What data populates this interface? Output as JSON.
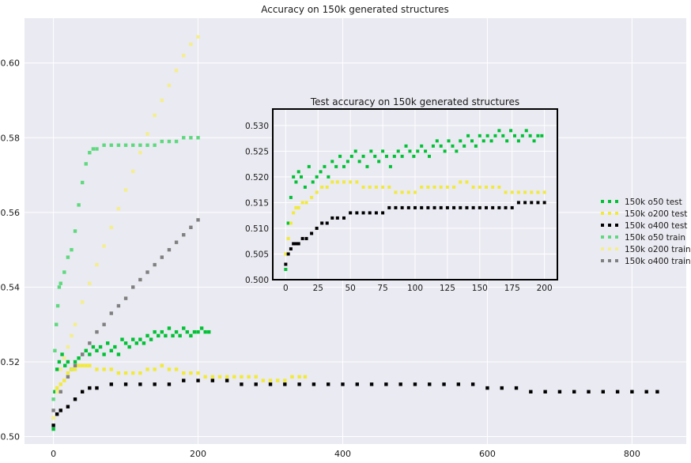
{
  "chart_data": [
    {
      "type": "scatter",
      "title": "Accuracy on 150k generated structures",
      "xlabel": "",
      "ylabel": "",
      "xlim": [
        -40,
        875
      ],
      "ylim": [
        0.498,
        0.612
      ],
      "xticks": [
        0,
        200,
        400,
        600,
        800
      ],
      "yticks": [
        0.5,
        0.52,
        0.54,
        0.56,
        0.58,
        0.6
      ],
      "grid": true,
      "legend_position": "right",
      "series": [
        {
          "name": "150k o50 test",
          "color": "#00c234",
          "x": [
            0,
            2,
            5,
            8,
            12,
            16,
            20,
            25,
            30,
            35,
            40,
            45,
            50,
            55,
            60,
            65,
            70,
            75,
            80,
            85,
            90,
            95,
            100,
            105,
            110,
            115,
            120,
            125,
            130,
            135,
            140,
            145,
            150,
            155,
            160,
            165,
            170,
            175,
            180,
            185,
            190,
            195,
            200,
            205,
            210,
            215
          ],
          "y": [
            0.502,
            0.512,
            0.518,
            0.52,
            0.522,
            0.519,
            0.52,
            0.518,
            0.52,
            0.521,
            0.522,
            0.523,
            0.522,
            0.524,
            0.523,
            0.524,
            0.522,
            0.525,
            0.523,
            0.524,
            0.522,
            0.526,
            0.525,
            0.524,
            0.526,
            0.525,
            0.526,
            0.525,
            0.527,
            0.526,
            0.528,
            0.527,
            0.528,
            0.527,
            0.529,
            0.527,
            0.528,
            0.527,
            0.529,
            0.528,
            0.527,
            0.528,
            0.528,
            0.529,
            0.528,
            0.528
          ]
        },
        {
          "name": "150k o200 test",
          "color": "#f2ea3a",
          "x": [
            0,
            5,
            10,
            15,
            20,
            25,
            30,
            35,
            40,
            45,
            50,
            60,
            70,
            80,
            90,
            100,
            110,
            120,
            130,
            140,
            150,
            160,
            170,
            180,
            190,
            200,
            210,
            220,
            230,
            240,
            250,
            260,
            270,
            280,
            290,
            300,
            310,
            320,
            330,
            340,
            348
          ],
          "y": [
            0.505,
            0.513,
            0.514,
            0.515,
            0.517,
            0.518,
            0.518,
            0.519,
            0.519,
            0.519,
            0.519,
            0.518,
            0.518,
            0.518,
            0.517,
            0.517,
            0.517,
            0.517,
            0.518,
            0.518,
            0.519,
            0.518,
            0.518,
            0.517,
            0.517,
            0.517,
            0.516,
            0.516,
            0.516,
            0.516,
            0.516,
            0.516,
            0.516,
            0.516,
            0.515,
            0.515,
            0.515,
            0.515,
            0.516,
            0.516,
            0.516
          ]
        },
        {
          "name": "150k o400 test",
          "color": "#000000",
          "x": [
            0,
            5,
            10,
            20,
            30,
            40,
            50,
            60,
            80,
            100,
            120,
            140,
            160,
            180,
            200,
            220,
            240,
            260,
            280,
            300,
            320,
            340,
            360,
            380,
            400,
            420,
            440,
            460,
            480,
            500,
            520,
            540,
            560,
            580,
            600,
            620,
            640,
            660,
            680,
            700,
            720,
            740,
            760,
            780,
            800,
            820,
            835
          ],
          "y": [
            0.503,
            0.506,
            0.507,
            0.508,
            0.51,
            0.512,
            0.513,
            0.513,
            0.514,
            0.514,
            0.514,
            0.514,
            0.514,
            0.515,
            0.515,
            0.515,
            0.515,
            0.514,
            0.514,
            0.514,
            0.514,
            0.514,
            0.514,
            0.514,
            0.514,
            0.514,
            0.514,
            0.514,
            0.514,
            0.514,
            0.514,
            0.514,
            0.514,
            0.514,
            0.513,
            0.513,
            0.513,
            0.512,
            0.512,
            0.512,
            0.512,
            0.512,
            0.512,
            0.512,
            0.512,
            0.512,
            0.512
          ]
        },
        {
          "name": "150k o50 train",
          "color": "#5fd97e",
          "x": [
            0,
            2,
            4,
            6,
            8,
            10,
            15,
            20,
            25,
            30,
            35,
            40,
            45,
            50,
            55,
            60,
            70,
            80,
            90,
            100,
            110,
            120,
            130,
            140,
            150,
            160,
            170,
            180,
            190,
            200
          ],
          "y": [
            0.51,
            0.523,
            0.53,
            0.535,
            0.54,
            0.541,
            0.544,
            0.548,
            0.55,
            0.555,
            0.562,
            0.568,
            0.573,
            0.576,
            0.577,
            0.577,
            0.578,
            0.578,
            0.578,
            0.578,
            0.578,
            0.578,
            0.578,
            0.578,
            0.579,
            0.579,
            0.579,
            0.58,
            0.58,
            0.58
          ]
        },
        {
          "name": "150k o200 train",
          "color": "#f4ee8c",
          "x": [
            0,
            5,
            10,
            15,
            20,
            25,
            30,
            40,
            50,
            60,
            70,
            80,
            90,
            100,
            110,
            120,
            130,
            140,
            150,
            160,
            170,
            180,
            190,
            200
          ],
          "y": [
            0.505,
            0.512,
            0.518,
            0.521,
            0.524,
            0.527,
            0.53,
            0.536,
            0.541,
            0.546,
            0.551,
            0.556,
            0.561,
            0.566,
            0.571,
            0.576,
            0.581,
            0.586,
            0.59,
            0.594,
            0.598,
            0.602,
            0.605,
            0.607
          ]
        },
        {
          "name": "150k o400 train",
          "color": "#808080",
          "x": [
            0,
            10,
            20,
            30,
            40,
            50,
            60,
            70,
            80,
            90,
            100,
            110,
            120,
            130,
            140,
            150,
            160,
            170,
            180,
            190,
            200
          ],
          "y": [
            0.507,
            0.512,
            0.516,
            0.519,
            0.522,
            0.525,
            0.528,
            0.53,
            0.533,
            0.535,
            0.537,
            0.54,
            0.542,
            0.544,
            0.546,
            0.548,
            0.55,
            0.552,
            0.554,
            0.556,
            0.558
          ]
        }
      ]
    },
    {
      "type": "scatter",
      "title": "Test accuracy on 150k generated structures",
      "xlabel": "",
      "ylabel": "",
      "xlim": [
        -10,
        210
      ],
      "ylim": [
        0.5,
        0.5332
      ],
      "xticks": [
        0,
        25,
        50,
        75,
        100,
        125,
        150,
        175,
        200
      ],
      "yticks": [
        0.5,
        0.505,
        0.51,
        0.515,
        0.52,
        0.525,
        0.53
      ],
      "grid": true,
      "series": [
        {
          "name": "150k o50 test",
          "color": "#00c234",
          "x": [
            0,
            2,
            4,
            6,
            8,
            10,
            12,
            15,
            18,
            21,
            24,
            27,
            30,
            33,
            36,
            39,
            42,
            45,
            48,
            51,
            54,
            57,
            60,
            63,
            66,
            69,
            72,
            75,
            78,
            81,
            84,
            87,
            90,
            93,
            96,
            99,
            102,
            105,
            108,
            111,
            114,
            117,
            120,
            123,
            126,
            129,
            132,
            135,
            138,
            141,
            144,
            147,
            150,
            153,
            156,
            159,
            162,
            165,
            168,
            171,
            174,
            177,
            180,
            183,
            186,
            189,
            192,
            195,
            198
          ],
          "y": [
            0.502,
            0.511,
            0.516,
            0.52,
            0.519,
            0.521,
            0.52,
            0.518,
            0.522,
            0.519,
            0.52,
            0.521,
            0.522,
            0.52,
            0.523,
            0.522,
            0.524,
            0.522,
            0.523,
            0.524,
            0.525,
            0.523,
            0.524,
            0.522,
            0.525,
            0.524,
            0.523,
            0.525,
            0.524,
            0.522,
            0.524,
            0.525,
            0.524,
            0.526,
            0.525,
            0.524,
            0.525,
            0.526,
            0.525,
            0.524,
            0.526,
            0.527,
            0.526,
            0.525,
            0.527,
            0.526,
            0.525,
            0.527,
            0.526,
            0.528,
            0.527,
            0.526,
            0.528,
            0.527,
            0.528,
            0.527,
            0.528,
            0.529,
            0.528,
            0.527,
            0.529,
            0.528,
            0.527,
            0.528,
            0.529,
            0.528,
            0.527,
            0.528,
            0.528
          ]
        },
        {
          "name": "150k o200 test",
          "color": "#f2ea3a",
          "x": [
            0,
            2,
            4,
            6,
            8,
            10,
            13,
            16,
            20,
            24,
            28,
            32,
            36,
            40,
            45,
            50,
            55,
            60,
            65,
            70,
            75,
            80,
            85,
            90,
            95,
            100,
            105,
            110,
            115,
            120,
            125,
            130,
            135,
            140,
            145,
            150,
            155,
            160,
            165,
            170,
            175,
            180,
            185,
            190,
            195,
            200
          ],
          "y": [
            0.505,
            0.508,
            0.511,
            0.513,
            0.514,
            0.514,
            0.515,
            0.515,
            0.516,
            0.517,
            0.518,
            0.518,
            0.519,
            0.519,
            0.519,
            0.519,
            0.519,
            0.518,
            0.518,
            0.518,
            0.518,
            0.518,
            0.517,
            0.517,
            0.517,
            0.517,
            0.518,
            0.518,
            0.518,
            0.518,
            0.518,
            0.518,
            0.519,
            0.519,
            0.518,
            0.518,
            0.518,
            0.518,
            0.518,
            0.517,
            0.517,
            0.517,
            0.517,
            0.517,
            0.517,
            0.517
          ]
        },
        {
          "name": "150k o400 test",
          "color": "#000000",
          "x": [
            0,
            2,
            4,
            6,
            8,
            10,
            13,
            16,
            20,
            24,
            28,
            32,
            36,
            40,
            45,
            50,
            55,
            60,
            65,
            70,
            75,
            80,
            85,
            90,
            95,
            100,
            105,
            110,
            115,
            120,
            125,
            130,
            135,
            140,
            145,
            150,
            155,
            160,
            165,
            170,
            175,
            180,
            185,
            190,
            195,
            200
          ],
          "y": [
            0.503,
            0.505,
            0.506,
            0.507,
            0.507,
            0.507,
            0.508,
            0.508,
            0.509,
            0.51,
            0.511,
            0.511,
            0.512,
            0.512,
            0.512,
            0.513,
            0.513,
            0.513,
            0.513,
            0.513,
            0.513,
            0.514,
            0.514,
            0.514,
            0.514,
            0.514,
            0.514,
            0.514,
            0.514,
            0.514,
            0.514,
            0.514,
            0.514,
            0.514,
            0.514,
            0.514,
            0.514,
            0.514,
            0.514,
            0.514,
            0.514,
            0.515,
            0.515,
            0.515,
            0.515,
            0.515
          ]
        }
      ]
    }
  ]
}
